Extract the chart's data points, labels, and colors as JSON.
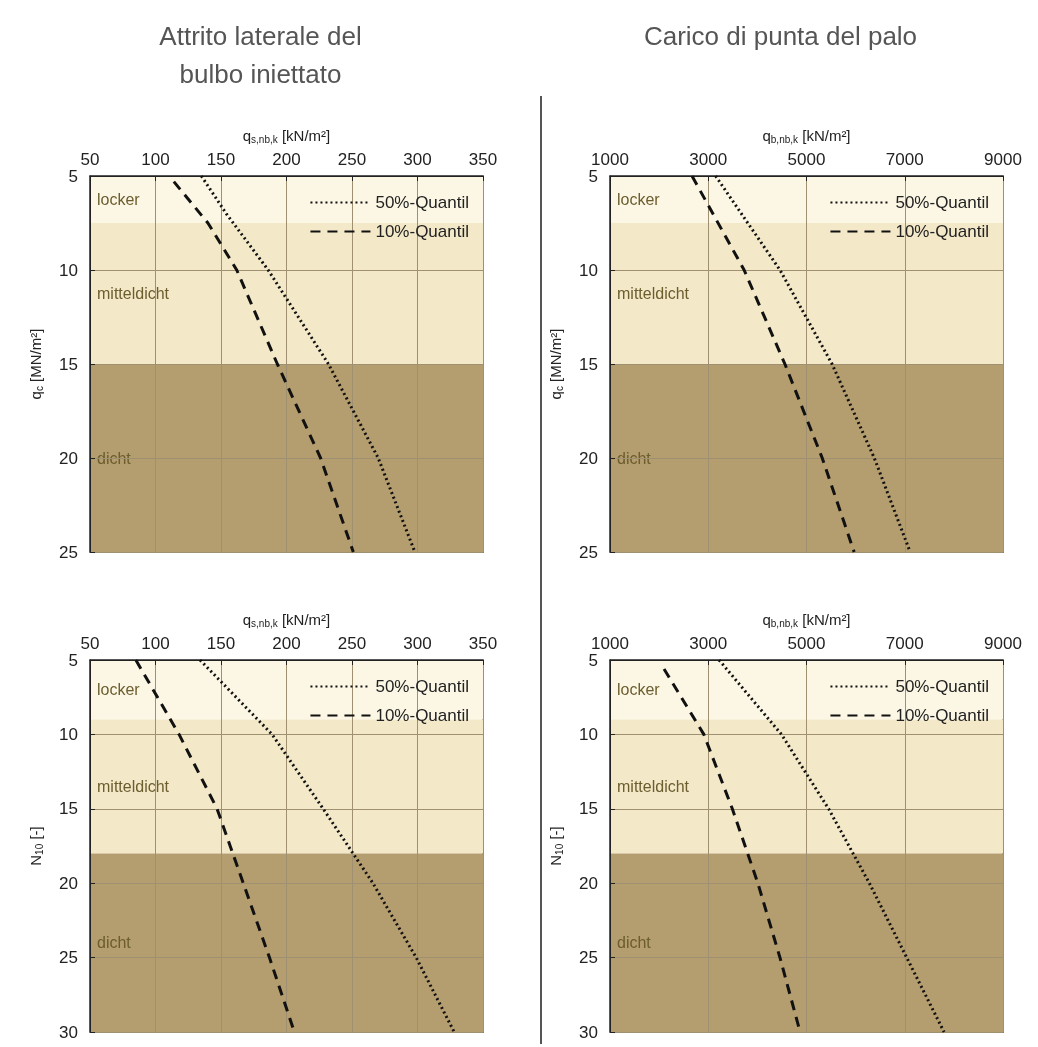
{
  "chart_data": [
    {
      "type": "line",
      "title": "Attrito laterale del\nbulbo iniettato",
      "xlabel": "q$_{s,nb,k}$ [kN/m²]",
      "ylabel": "q$_{c}$ [MN/m²]",
      "xlim": [
        50,
        350
      ],
      "xticks": [
        50,
        100,
        150,
        200,
        250,
        300,
        350
      ],
      "ylim": [
        25,
        5
      ],
      "yticks": [
        5,
        10,
        15,
        20,
        25
      ],
      "grid": true,
      "legend": "top right",
      "marker": "none",
      "bands": [
        {
          "axis": "y",
          "from": 5,
          "to": 7.5,
          "label": "locker",
          "color": "#fcf7e4"
        },
        {
          "axis": "y",
          "from": 7.5,
          "to": 15,
          "label": "mitteldicht",
          "color": "#f3e8c8"
        },
        {
          "axis": "y",
          "from": 15,
          "to": 25,
          "label": "dicht",
          "color": "#b49d6f"
        }
      ],
      "series": [
        {
          "name": "50%-Quantil",
          "color": "#111111",
          "line_style": "dotted",
          "x": [
            135,
            154,
            186,
            232,
            270,
            298
          ],
          "values": [
            5,
            7,
            10,
            15,
            20,
            25
          ]
        },
        {
          "name": "10%-Quantil",
          "color": "#111111",
          "line_style": "dashed",
          "x": [
            114,
            140,
            162,
            193,
            226,
            251
          ],
          "values": [
            5.3,
            7.5,
            10,
            15,
            20,
            25
          ]
        }
      ]
    },
    {
      "type": "line",
      "title": "Carico di punta del palo",
      "xlabel": "q$_{b,nb,k}$ [kN/m²]",
      "ylabel": "q$_{c}$ [MN/m²]",
      "xlim": [
        1000,
        9000
      ],
      "xticks": [
        1000,
        3000,
        5000,
        7000,
        9000
      ],
      "ylim": [
        25,
        5
      ],
      "yticks": [
        5,
        10,
        15,
        20,
        25
      ],
      "grid": true,
      "legend": "top right",
      "marker": "none",
      "bands": [
        {
          "axis": "y",
          "from": 5,
          "to": 7.5,
          "label": "locker",
          "color": "#fcf7e4"
        },
        {
          "axis": "y",
          "from": 7.5,
          "to": 15,
          "label": "mitteldicht",
          "color": "#f3e8c8"
        },
        {
          "axis": "y",
          "from": 15,
          "to": 25,
          "label": "dicht",
          "color": "#b49d6f"
        }
      ],
      "series": [
        {
          "name": "50%-Quantil",
          "color": "#111111",
          "line_style": "dotted",
          "x": [
            3150,
            4460,
            5520,
            6380,
            7110
          ],
          "values": [
            5,
            10,
            15,
            20,
            25
          ]
        },
        {
          "name": "10%-Quantil",
          "color": "#111111",
          "line_style": "dashed",
          "x": [
            2670,
            3730,
            4560,
            5320,
            5970
          ],
          "values": [
            5,
            10,
            15,
            20,
            25
          ]
        }
      ]
    },
    {
      "type": "line",
      "xlabel": "q$_{s,nb,k}$ [kN/m²]",
      "ylabel": "N$_{10}$ [-]",
      "xlim": [
        50,
        350
      ],
      "xticks": [
        50,
        100,
        150,
        200,
        250,
        300,
        350
      ],
      "ylim": [
        30,
        5
      ],
      "yticks": [
        5,
        10,
        15,
        20,
        25,
        30
      ],
      "grid": true,
      "legend": "top right",
      "marker": "none",
      "bands": [
        {
          "axis": "y",
          "from": 5,
          "to": 9,
          "label": "locker",
          "color": "#fcf7e4"
        },
        {
          "axis": "y",
          "from": 9,
          "to": 18,
          "label": "mitteldicht",
          "color": "#f3e8c8"
        },
        {
          "axis": "y",
          "from": 18,
          "to": 30,
          "label": "dicht",
          "color": "#b49d6f"
        }
      ],
      "series": [
        {
          "name": "50%-Quantil",
          "color": "#111111",
          "line_style": "dotted",
          "x": [
            134,
            189,
            228,
            266,
            299,
            328
          ],
          "values": [
            5,
            10,
            15,
            20,
            25,
            30
          ]
        },
        {
          "name": "10%-Quantil",
          "color": "#111111",
          "line_style": "dashed",
          "x": [
            85,
            118,
            147,
            167,
            187,
            206
          ],
          "values": [
            5,
            10,
            15,
            20,
            25,
            30
          ]
        }
      ]
    },
    {
      "type": "line",
      "xlabel": "q$_{b,nb,k}$ [kN/m²]",
      "ylabel": "N$_{10}$ [-]",
      "xlim": [
        1000,
        9000
      ],
      "xticks": [
        1000,
        3000,
        5000,
        7000,
        9000
      ],
      "ylim": [
        30,
        5
      ],
      "yticks": [
        5,
        10,
        15,
        20,
        25,
        30
      ],
      "grid": true,
      "legend": "top right",
      "marker": "none",
      "bands": [
        {
          "axis": "y",
          "from": 5,
          "to": 9,
          "label": "locker",
          "color": "#fcf7e4"
        },
        {
          "axis": "y",
          "from": 9,
          "to": 18,
          "label": "mitteldicht",
          "color": "#f3e8c8"
        },
        {
          "axis": "y",
          "from": 18,
          "to": 30,
          "label": "dicht",
          "color": "#b49d6f"
        }
      ],
      "series": [
        {
          "name": "50%-Quantil",
          "color": "#111111",
          "line_style": "dotted",
          "x": [
            3220,
            4490,
            5450,
            6280,
            7040,
            7800
          ],
          "values": [
            5,
            10,
            15,
            20,
            25,
            30
          ]
        },
        {
          "name": "10%-Quantil",
          "color": "#111111",
          "line_style": "dashed",
          "x": [
            2100,
            2910,
            3490,
            4010,
            4460,
            4870
          ],
          "values": [
            5.6,
            10,
            15,
            20,
            25,
            30
          ]
        }
      ]
    }
  ]
}
